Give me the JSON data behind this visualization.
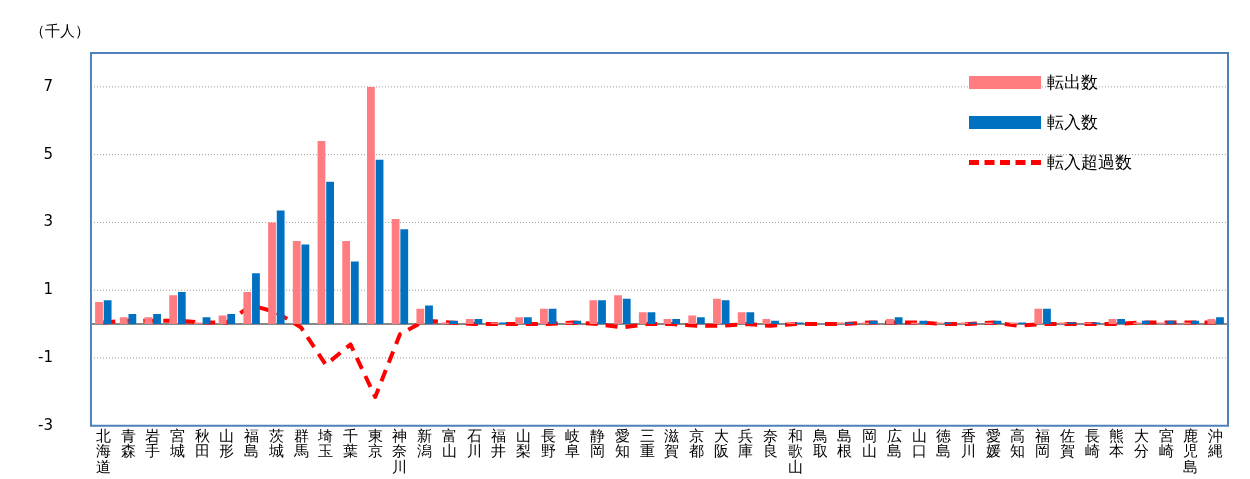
{
  "chart_data": {
    "type": "bar",
    "ylabel": "（千人）",
    "categories": [
      "北海道",
      "青森",
      "岩手",
      "宮城",
      "秋田",
      "山形",
      "福島",
      "茨城",
      "群馬",
      "埼玉",
      "千葉",
      "東京",
      "神奈川",
      "新潟",
      "富山",
      "石川",
      "福井",
      "山梨",
      "長野",
      "岐阜",
      "静岡",
      "愛知",
      "三重",
      "滋賀",
      "京都",
      "大阪",
      "兵庫",
      "奈良",
      "和歌山",
      "鳥取",
      "島根",
      "岡山",
      "広島",
      "山口",
      "徳島",
      "香川",
      "愛媛",
      "高知",
      "福岡",
      "佐賀",
      "長崎",
      "熊本",
      "大分",
      "宮崎",
      "鹿児島",
      "沖縄"
    ],
    "series": [
      {
        "name": "転出数",
        "color": "#ff7c80",
        "values": [
          0.65,
          0.2,
          0.2,
          0.85,
          0.05,
          0.25,
          0.95,
          3.0,
          2.45,
          5.4,
          2.45,
          7.0,
          3.1,
          0.45,
          0.05,
          0.15,
          0.05,
          0.2,
          0.45,
          0.05,
          0.7,
          0.85,
          0.35,
          0.15,
          0.25,
          0.75,
          0.35,
          0.15,
          0.05,
          0.0,
          0.05,
          0.05,
          0.15,
          0.05,
          0.05,
          0.05,
          0.05,
          0.05,
          0.45,
          0.05,
          0.05,
          0.15,
          0.05,
          0.05,
          0.05,
          0.15
        ]
      },
      {
        "name": "転入数",
        "color": "#0070c0",
        "values": [
          0.7,
          0.3,
          0.3,
          0.95,
          0.2,
          0.3,
          1.5,
          3.35,
          2.35,
          4.2,
          1.85,
          4.85,
          2.8,
          0.55,
          0.1,
          0.15,
          0.05,
          0.2,
          0.45,
          0.1,
          0.7,
          0.75,
          0.35,
          0.15,
          0.2,
          0.7,
          0.35,
          0.1,
          0.05,
          0.0,
          0.05,
          0.1,
          0.2,
          0.1,
          0.05,
          0.05,
          0.1,
          0.05,
          0.45,
          0.05,
          0.05,
          0.15,
          0.1,
          0.1,
          0.1,
          0.2
        ]
      },
      {
        "name": "転入超過数",
        "type": "line",
        "color": "#ff0000",
        "line_style": "dashed",
        "values": [
          0.05,
          0.1,
          0.1,
          0.1,
          0.05,
          0.05,
          0.55,
          0.35,
          -0.1,
          -1.2,
          -0.6,
          -2.15,
          -0.3,
          0.1,
          0.05,
          0.0,
          0.0,
          0.0,
          0.0,
          0.05,
          0.0,
          -0.1,
          0.0,
          0.0,
          -0.05,
          -0.05,
          0.0,
          -0.05,
          0.0,
          0.0,
          0.0,
          0.05,
          0.05,
          0.05,
          0.0,
          0.0,
          0.05,
          -0.05,
          0.0,
          0.0,
          0.0,
          0.0,
          0.05,
          0.05,
          0.05,
          0.05
        ]
      }
    ],
    "ylim": [
      -3,
      8
    ],
    "yticks": [
      -3,
      -1,
      1,
      3,
      5,
      7
    ],
    "grid": "y",
    "legend": "top right",
    "marker": "none"
  }
}
